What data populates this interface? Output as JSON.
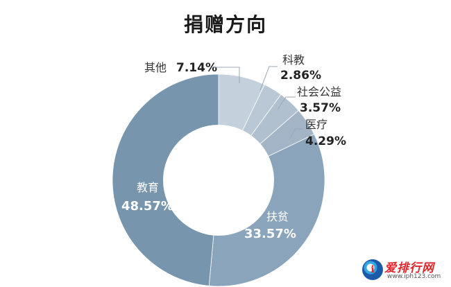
{
  "chart_data": {
    "type": "pie",
    "title": "捐赠方向",
    "categories": [
      "其他",
      "科教",
      "社会公益",
      "医疗",
      "扶贫",
      "教育"
    ],
    "values": [
      7.14,
      2.86,
      3.57,
      4.29,
      33.57,
      48.57
    ],
    "value_labels": [
      "7.14%",
      "2.86%",
      "3.57%",
      "4.29%",
      "33.57%",
      "48.57%"
    ],
    "colors": [
      "#c4d0dc",
      "#bac8d5",
      "#b0c0cf",
      "#a2b4c6",
      "#8aa4bc",
      "#7895ae"
    ],
    "donut": true
  },
  "watermark": {
    "icon": "info-i-icon",
    "icon_letter": "i",
    "text": "爱排行网",
    "url": "www.iph123.com"
  }
}
